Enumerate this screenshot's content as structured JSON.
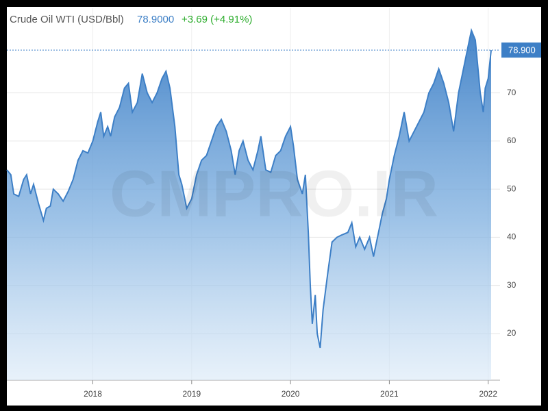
{
  "chart_data": {
    "type": "area",
    "title": "Crude Oil WTI (USD/Bbl)",
    "price": "78.9000",
    "change": "+3.69 (+4.91%)",
    "price_label": "78.900",
    "watermark": "CMPRO.IR",
    "color": "#3d7fc6",
    "grid": true,
    "xlim": [
      2017.13,
      2022.12
    ],
    "xticks": [
      2018,
      2019,
      2020,
      2021,
      2022
    ],
    "ylim": [
      10.3,
      87.6
    ],
    "yticks": [
      20,
      30,
      40,
      50,
      60,
      70
    ],
    "x": [
      2017.13,
      2017.17,
      2017.2,
      2017.25,
      2017.3,
      2017.33,
      2017.37,
      2017.4,
      2017.45,
      2017.5,
      2017.53,
      2017.57,
      2017.6,
      2017.65,
      2017.7,
      2017.75,
      2017.8,
      2017.85,
      2017.9,
      2017.95,
      2018.0,
      2018.05,
      2018.08,
      2018.11,
      2018.15,
      2018.18,
      2018.22,
      2018.27,
      2018.32,
      2018.36,
      2018.4,
      2018.45,
      2018.5,
      2018.55,
      2018.6,
      2018.65,
      2018.7,
      2018.74,
      2018.78,
      2018.83,
      2018.87,
      2018.9,
      2018.95,
      2019.0,
      2019.05,
      2019.1,
      2019.15,
      2019.2,
      2019.25,
      2019.3,
      2019.35,
      2019.4,
      2019.44,
      2019.48,
      2019.52,
      2019.57,
      2019.62,
      2019.67,
      2019.7,
      2019.75,
      2019.8,
      2019.85,
      2019.9,
      2019.95,
      2020.0,
      2020.03,
      2020.07,
      2020.12,
      2020.15,
      2020.18,
      2020.2,
      2020.22,
      2020.25,
      2020.27,
      2020.3,
      2020.33,
      2020.38,
      2020.42,
      2020.47,
      2020.52,
      2020.58,
      2020.62,
      2020.66,
      2020.7,
      2020.75,
      2020.8,
      2020.84,
      2020.88,
      2020.93,
      2020.97,
      2021.0,
      2021.05,
      2021.1,
      2021.15,
      2021.2,
      2021.25,
      2021.3,
      2021.35,
      2021.4,
      2021.45,
      2021.5,
      2021.55,
      2021.6,
      2021.65,
      2021.7,
      2021.75,
      2021.8,
      2021.83,
      2021.87,
      2021.92,
      2021.95,
      2021.97,
      2022.0,
      2022.03
    ],
    "values": [
      54,
      53,
      49,
      48.5,
      52,
      53,
      49,
      51,
      47,
      43.5,
      46,
      46.5,
      50,
      49,
      47.5,
      49.5,
      52,
      56,
      58,
      57.5,
      60,
      64,
      66,
      61,
      63,
      61,
      65,
      67,
      71,
      72,
      66,
      68,
      74,
      70,
      68,
      70,
      73,
      74.5,
      71,
      63,
      53,
      51,
      46,
      48,
      53,
      56,
      57,
      60,
      63,
      64.5,
      62,
      58,
      53,
      58,
      60,
      56,
      54,
      58,
      61,
      54,
      53.5,
      57,
      58,
      61,
      63,
      59,
      52,
      49,
      53,
      41,
      30,
      22,
      28,
      20,
      17,
      25,
      33,
      39,
      40,
      40.5,
      41,
      43,
      38,
      40,
      37.5,
      40,
      36,
      40,
      45,
      48,
      52,
      57,
      61,
      66,
      60,
      62,
      64,
      66,
      70,
      72,
      75,
      72,
      68,
      62,
      70,
      75,
      80,
      83,
      81,
      70,
      66,
      71,
      73,
      78.9
    ]
  }
}
